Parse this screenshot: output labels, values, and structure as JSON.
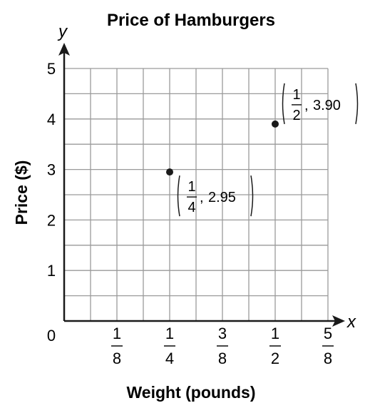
{
  "chart_data": {
    "type": "scatter",
    "title": "Price of Hamburgers",
    "xlabel": "Weight (pounds)",
    "ylabel": "Price ($)",
    "x_axis_letter": "x",
    "y_axis_letter": "y",
    "origin_label": "0",
    "xlim": [
      0,
      0.625
    ],
    "ylim": [
      0,
      5
    ],
    "grid": true,
    "grid_step_x": 0.0625,
    "grid_step_y": 0.5,
    "x_ticks": [
      {
        "value": 0.125,
        "num": "1",
        "den": "8"
      },
      {
        "value": 0.25,
        "num": "1",
        "den": "4"
      },
      {
        "value": 0.375,
        "num": "3",
        "den": "8"
      },
      {
        "value": 0.5,
        "num": "1",
        "den": "2"
      },
      {
        "value": 0.625,
        "num": "5",
        "den": "8"
      }
    ],
    "y_ticks": [
      {
        "value": 1,
        "label": "1"
      },
      {
        "value": 2,
        "label": "2"
      },
      {
        "value": 3,
        "label": "3"
      },
      {
        "value": 4,
        "label": "4"
      },
      {
        "value": 5,
        "label": "5"
      }
    ],
    "points": [
      {
        "x": 0.25,
        "y": 2.95,
        "label_num": "1",
        "label_den": "4",
        "label_value": "2.95",
        "label_position": "below-right"
      },
      {
        "x": 0.5,
        "y": 3.9,
        "label_num": "1",
        "label_den": "2",
        "label_value": "3.90",
        "label_position": "above-right"
      }
    ]
  }
}
